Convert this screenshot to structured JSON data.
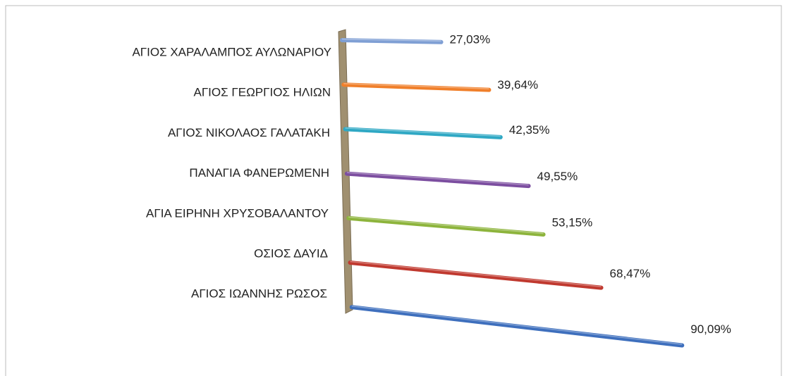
{
  "chart_data": {
    "type": "bar",
    "categories": [
      "ΑΓΙΟΣ ΧΑΡΑΛΑΜΠΟΣ ΑΥΛΩΝΑΡΙΟΥ",
      "ΑΓΙΟΣ ΓΕΩΡΓΙΟΣ ΗΛΙΩΝ",
      "ΑΓΙΟΣ ΝΙΚΟΛΑΟΣ ΓΑΛΑΤΑΚΗ",
      "ΠΑΝΑΓΙΑ ΦΑΝΕΡΩΜΕΝΗ",
      "ΑΓΙΑ ΕΙΡΗΝΗ ΧΡΥΣΟΒΑΛΑΝΤΟΥ",
      "ΟΣΙΟΣ ΔΑΥΙΔ",
      "ΑΓΙΟΣ ΙΩΑΝΝΗΣ ΡΩΣΟΣ"
    ],
    "values": [
      27.03,
      39.64,
      42.35,
      49.55,
      53.15,
      68.47,
      90.09
    ],
    "value_labels": [
      "27,03%",
      "39,64%",
      "42,35%",
      "49,55%",
      "53,15%",
      "68,47%",
      "90,09%"
    ],
    "colors": [
      "#7f9fd4",
      "#f07f2a",
      "#2fa8c4",
      "#7c4ea0",
      "#8db43c",
      "#c0392f",
      "#3e6fbd"
    ]
  }
}
